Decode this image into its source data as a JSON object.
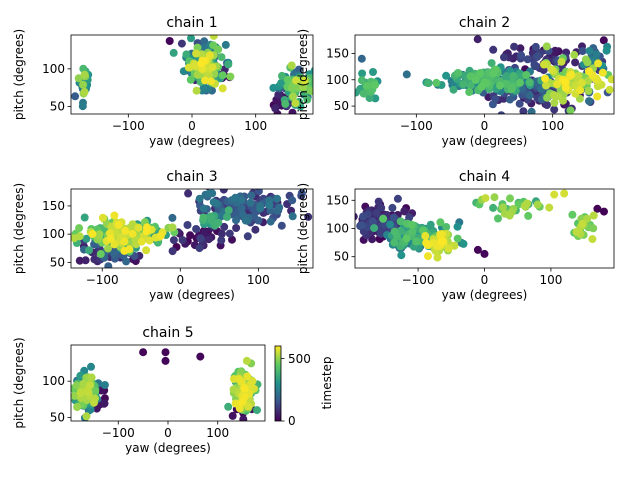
{
  "colorbar": {
    "label": "timestep",
    "ticks": [
      0,
      500
    ],
    "tick_labels": [
      "0",
      "500"
    ],
    "range": [
      0,
      600
    ],
    "colormap": "viridis"
  },
  "chart_data": [
    {
      "type": "scatter",
      "title": "chain 1",
      "xlabel": "yaw (degrees)",
      "ylabel": "pitch (degrees)",
      "xlim": [
        -190,
        190
      ],
      "ylim": [
        40,
        145
      ],
      "xticks": [
        -100,
        0,
        100
      ],
      "yticks": [
        50,
        100
      ],
      "clusters": [
        {
          "x": 20,
          "y": 105,
          "sx": 14,
          "sy": 14,
          "n": 200,
          "t": [
            40,
            600
          ]
        },
        {
          "x": -170,
          "y": 82,
          "sx": 4,
          "sy": 12,
          "n": 30,
          "t": [
            150,
            550
          ]
        },
        {
          "x": 160,
          "y": 75,
          "sx": 15,
          "sy": 14,
          "n": 90,
          "t": [
            100,
            560
          ]
        },
        {
          "x": 140,
          "y": 55,
          "sx": 10,
          "sy": 5,
          "n": 25,
          "t": [
            0,
            80
          ]
        },
        {
          "x": 40,
          "y": 92,
          "sx": 8,
          "sy": 4,
          "n": 8,
          "t": [
            0,
            60
          ]
        }
      ],
      "outliers": [
        {
          "x": -35,
          "y": 137,
          "t": 10
        },
        {
          "x": 5,
          "y": 85,
          "t": 60
        }
      ]
    },
    {
      "type": "scatter",
      "title": "chain 2",
      "xlabel": "yaw (degrees)",
      "ylabel": "pitch (degrees)",
      "xlim": [
        -190,
        190
      ],
      "ylim": [
        35,
        185
      ],
      "xticks": [
        -100,
        0,
        100
      ],
      "yticks": [
        50,
        100,
        150
      ],
      "clusters": [
        {
          "x": 0,
          "y": 100,
          "sx": 40,
          "sy": 10,
          "n": 160,
          "t": [
            200,
            450
          ]
        },
        {
          "x": 70,
          "y": 80,
          "sx": 40,
          "sy": 14,
          "n": 120,
          "t": [
            20,
            220
          ]
        },
        {
          "x": 80,
          "y": 140,
          "sx": 30,
          "sy": 14,
          "n": 60,
          "t": [
            10,
            150
          ]
        },
        {
          "x": 130,
          "y": 100,
          "sx": 25,
          "sy": 18,
          "n": 90,
          "t": [
            450,
            600
          ]
        },
        {
          "x": -170,
          "y": 85,
          "sx": 6,
          "sy": 12,
          "n": 30,
          "t": [
            300,
            450
          ]
        },
        {
          "x": 160,
          "y": 130,
          "sx": 12,
          "sy": 20,
          "n": 30,
          "t": [
            50,
            300
          ]
        }
      ],
      "outliers": [
        {
          "x": -10,
          "y": 177,
          "t": 60
        },
        {
          "x": 175,
          "y": 175,
          "t": 10
        },
        {
          "x": -180,
          "y": 140,
          "t": 200
        }
      ]
    },
    {
      "type": "scatter",
      "title": "chain 3",
      "xlabel": "yaw (degrees)",
      "ylabel": "pitch (degrees)",
      "xlim": [
        -140,
        170
      ],
      "ylim": [
        40,
        180
      ],
      "xticks": [
        -100,
        0,
        100
      ],
      "yticks": [
        50,
        100,
        150
      ],
      "clusters": [
        {
          "x": -70,
          "y": 100,
          "sx": 25,
          "sy": 12,
          "n": 200,
          "t": [
            300,
            600
          ]
        },
        {
          "x": -85,
          "y": 70,
          "sx": 18,
          "sy": 12,
          "n": 60,
          "t": [
            20,
            200
          ]
        },
        {
          "x": 80,
          "y": 145,
          "sx": 30,
          "sy": 14,
          "n": 120,
          "t": [
            50,
            250
          ]
        },
        {
          "x": 30,
          "y": 95,
          "sx": 18,
          "sy": 18,
          "n": 40,
          "t": [
            0,
            120
          ]
        },
        {
          "x": 40,
          "y": 125,
          "sx": 10,
          "sy": 10,
          "n": 20,
          "t": [
            200,
            400
          ]
        }
      ],
      "outliers": [
        {
          "x": 10,
          "y": 172,
          "t": 80
        },
        {
          "x": 155,
          "y": 168,
          "t": 120
        },
        {
          "x": 140,
          "y": 168,
          "t": 120
        },
        {
          "x": -10,
          "y": 112,
          "t": 520
        }
      ]
    },
    {
      "type": "scatter",
      "title": "chain 4",
      "xlabel": "yaw (degrees)",
      "ylabel": "pitch (degrees)",
      "xlim": [
        -195,
        195
      ],
      "ylim": [
        30,
        170
      ],
      "xticks": [
        -100,
        0,
        100
      ],
      "yticks": [
        50,
        100,
        150
      ],
      "clusters": [
        {
          "x": -150,
          "y": 110,
          "sx": 20,
          "sy": 15,
          "n": 120,
          "t": [
            0,
            150
          ]
        },
        {
          "x": -100,
          "y": 85,
          "sx": 25,
          "sy": 15,
          "n": 120,
          "t": [
            200,
            450
          ]
        },
        {
          "x": -70,
          "y": 75,
          "sx": 10,
          "sy": 10,
          "n": 40,
          "t": [
            500,
            600
          ]
        },
        {
          "x": 40,
          "y": 140,
          "sx": 25,
          "sy": 8,
          "n": 30,
          "t": [
            350,
            550
          ]
        },
        {
          "x": 150,
          "y": 105,
          "sx": 10,
          "sy": 15,
          "n": 20,
          "t": [
            400,
            550
          ]
        }
      ],
      "outliers": [
        {
          "x": -10,
          "y": 62,
          "t": 10
        },
        {
          "x": 0,
          "y": 55,
          "t": 10
        },
        {
          "x": 170,
          "y": 135,
          "t": 5
        },
        {
          "x": 180,
          "y": 130,
          "t": 5
        },
        {
          "x": 105,
          "y": 160,
          "t": 560
        },
        {
          "x": 120,
          "y": 162,
          "t": 560
        }
      ]
    },
    {
      "type": "scatter",
      "title": "chain 5",
      "xlabel": "yaw (degrees)",
      "ylabel": "pitch (degrees)",
      "xlim": [
        -195,
        195
      ],
      "ylim": [
        45,
        150
      ],
      "xticks": [
        -100,
        0,
        100
      ],
      "yticks": [
        50,
        100
      ],
      "clusters": [
        {
          "x": -165,
          "y": 85,
          "sx": 10,
          "sy": 12,
          "n": 140,
          "t": [
            200,
            550
          ]
        },
        {
          "x": 155,
          "y": 85,
          "sx": 10,
          "sy": 12,
          "n": 150,
          "t": [
            350,
            600
          ]
        },
        {
          "x": -140,
          "y": 75,
          "sx": 8,
          "sy": 8,
          "n": 15,
          "t": [
            0,
            60
          ]
        },
        {
          "x": 150,
          "y": 65,
          "sx": 10,
          "sy": 8,
          "n": 15,
          "t": [
            0,
            80
          ]
        }
      ],
      "outliers": [
        {
          "x": -50,
          "y": 140,
          "t": 10
        },
        {
          "x": -5,
          "y": 140,
          "t": 10
        },
        {
          "x": -5,
          "y": 128,
          "t": 10
        },
        {
          "x": 65,
          "y": 134,
          "t": 10
        },
        {
          "x": 130,
          "y": 52,
          "t": 30
        }
      ]
    }
  ]
}
